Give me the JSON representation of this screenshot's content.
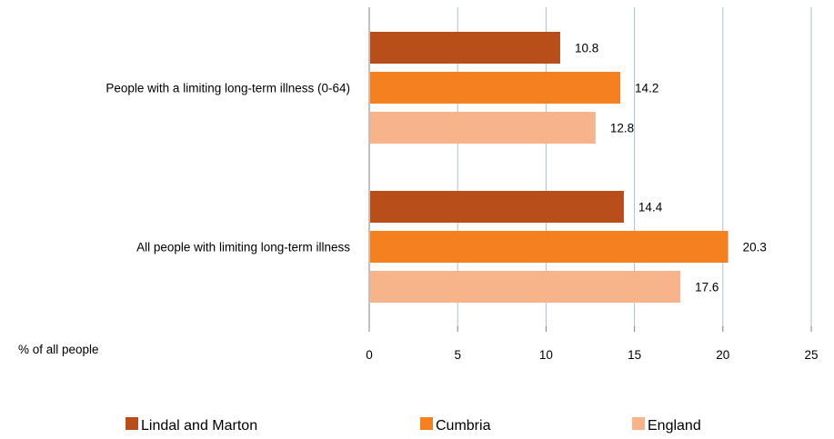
{
  "chart_data": {
    "type": "bar",
    "orientation": "horizontal",
    "categories": [
      "People with a limiting long-term illness (0-64)",
      "All people with limiting long-term illness"
    ],
    "series": [
      {
        "name": "Lindal and Marton",
        "color": "#b84f1a",
        "values": [
          10.8,
          14.4
        ]
      },
      {
        "name": "Cumbria",
        "color": "#f4801f",
        "values": [
          14.2,
          20.3
        ]
      },
      {
        "name": "England",
        "color": "#f7b48a",
        "values": [
          12.8,
          17.6
        ]
      }
    ],
    "xlabel": "% of all people",
    "xlim": [
      0,
      25
    ],
    "xticks": [
      0,
      5,
      10,
      15,
      20,
      25
    ],
    "data_labels": true,
    "grid": "vertical",
    "grid_color": "#aabfd6",
    "legend_position": "bottom"
  }
}
